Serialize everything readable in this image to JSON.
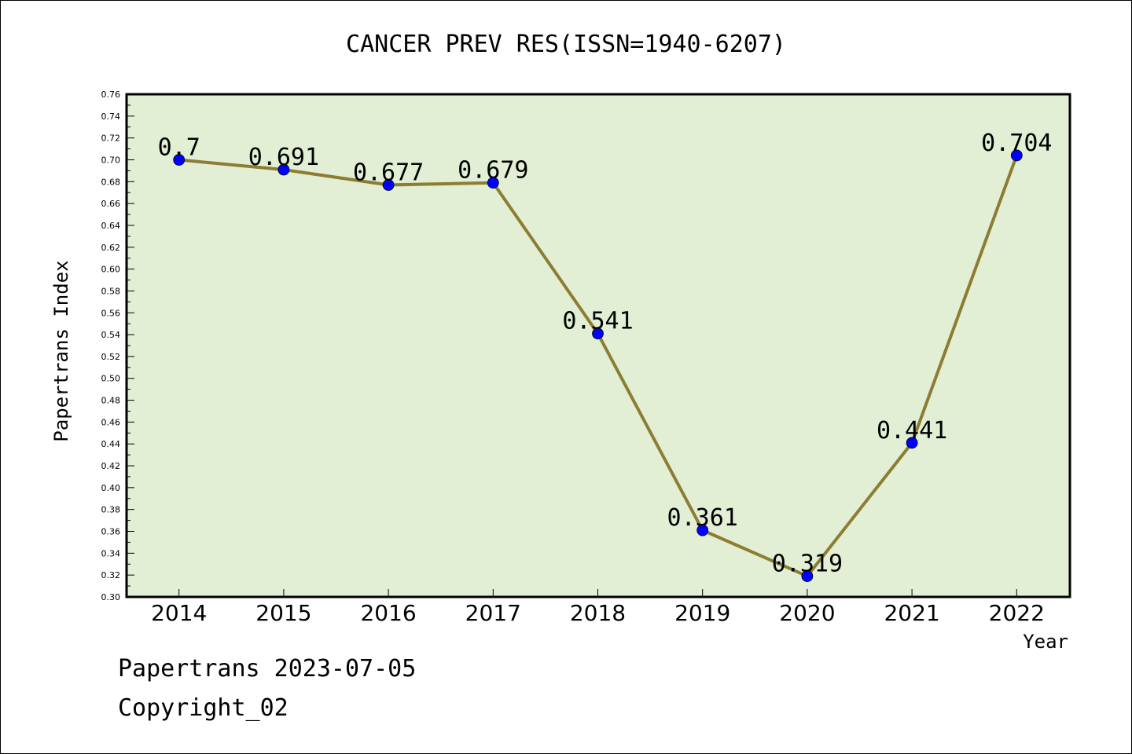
{
  "chart_data": {
    "type": "line",
    "title": "CANCER PREV RES(ISSN=1940-6207)",
    "xlabel": "Year",
    "ylabel": "Papertrans Index",
    "categories": [
      "2014",
      "2015",
      "2016",
      "2017",
      "2018",
      "2019",
      "2020",
      "2021",
      "2022"
    ],
    "series": [
      {
        "values": [
          0.7,
          0.691,
          0.677,
          0.679,
          0.541,
          0.361,
          0.319,
          0.441,
          0.704
        ],
        "labels": [
          "0.7",
          "0.691",
          "0.677",
          "0.679",
          "0.541",
          "0.361",
          "0.319",
          "0.441",
          "0.704"
        ]
      }
    ],
    "ylim": [
      0.3,
      0.76
    ],
    "yticks": [
      "0.30",
      "0.32",
      "0.34",
      "0.36",
      "0.38",
      "0.40",
      "0.42",
      "0.44",
      "0.46",
      "0.48",
      "0.50",
      "0.52",
      "0.54",
      "0.56",
      "0.58",
      "0.60",
      "0.62",
      "0.64",
      "0.66",
      "0.68",
      "0.70",
      "0.72",
      "0.74",
      "0.76"
    ],
    "grid": false,
    "colors": {
      "plot_background": "#e2efd5",
      "line": "#8c7d32",
      "marker": "#0000ff"
    }
  },
  "footer": {
    "date_text": "Papertrans 2023-07-05",
    "copyright_text": "Copyright_02"
  }
}
